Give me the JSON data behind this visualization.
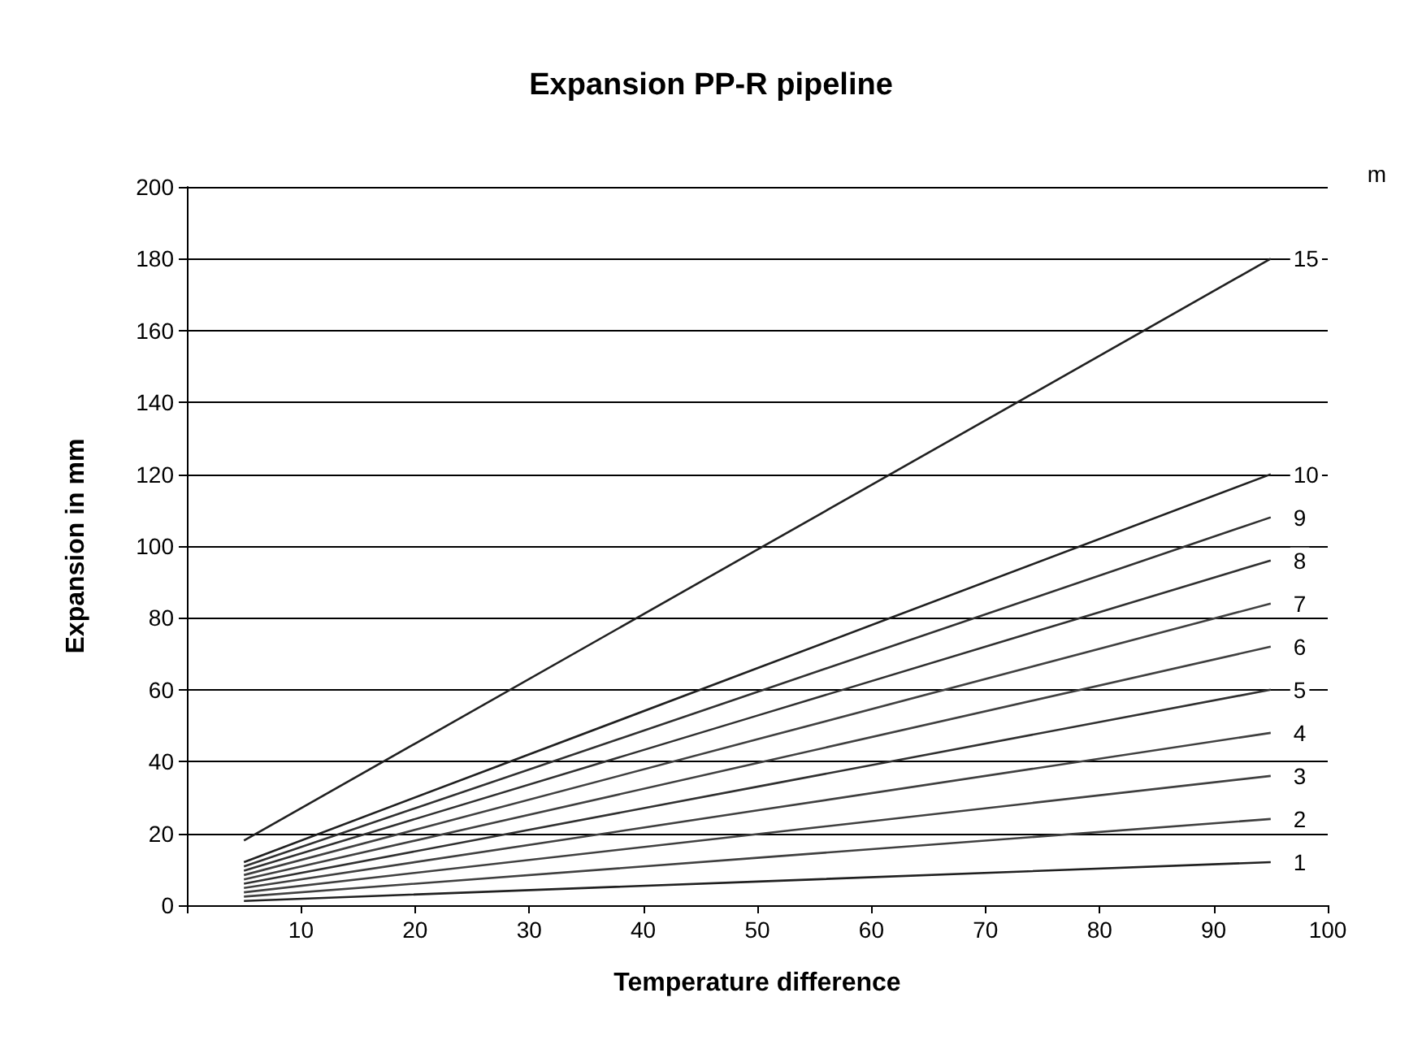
{
  "chart_data": {
    "type": "line",
    "title": "Expansion PP-R pipeline",
    "xlabel": "Temperature difference",
    "ylabel": "Expansion in mm",
    "annotations": [
      "m"
    ],
    "x": [
      5,
      50,
      95
    ],
    "series": [
      {
        "name": "1",
        "color": "#202020",
        "values": [
          1.2,
          6.6,
          12
        ]
      },
      {
        "name": "2",
        "color": "#404040",
        "values": [
          2.4,
          13.2,
          24
        ]
      },
      {
        "name": "3",
        "color": "#404040",
        "values": [
          3.6,
          19.8,
          36
        ]
      },
      {
        "name": "4",
        "color": "#404040",
        "values": [
          4.8,
          26.4,
          48
        ]
      },
      {
        "name": "5",
        "color": "#303030",
        "values": [
          6,
          33,
          60
        ]
      },
      {
        "name": "6",
        "color": "#404040",
        "values": [
          7.2,
          39.6,
          72
        ]
      },
      {
        "name": "7",
        "color": "#404040",
        "values": [
          8.4,
          46.2,
          84
        ]
      },
      {
        "name": "8",
        "color": "#303030",
        "values": [
          9.6,
          52.8,
          96
        ]
      },
      {
        "name": "9",
        "color": "#303030",
        "values": [
          10.8,
          59.4,
          108
        ]
      },
      {
        "name": "10",
        "color": "#202020",
        "values": [
          12,
          66,
          120
        ]
      },
      {
        "name": "15",
        "color": "#202020",
        "values": [
          18,
          99,
          180
        ]
      }
    ],
    "xlim": [
      0,
      100
    ],
    "xticks": [
      {
        "value": 0,
        "label": null
      },
      10,
      20,
      30,
      40,
      50,
      60,
      70,
      80,
      90,
      100
    ],
    "ylim": [
      0,
      200
    ],
    "yticks": [
      0,
      20,
      40,
      60,
      80,
      100,
      120,
      140,
      160,
      180,
      200
    ],
    "grid": "y",
    "legend": false,
    "marker": "none",
    "line_style": "solid"
  }
}
